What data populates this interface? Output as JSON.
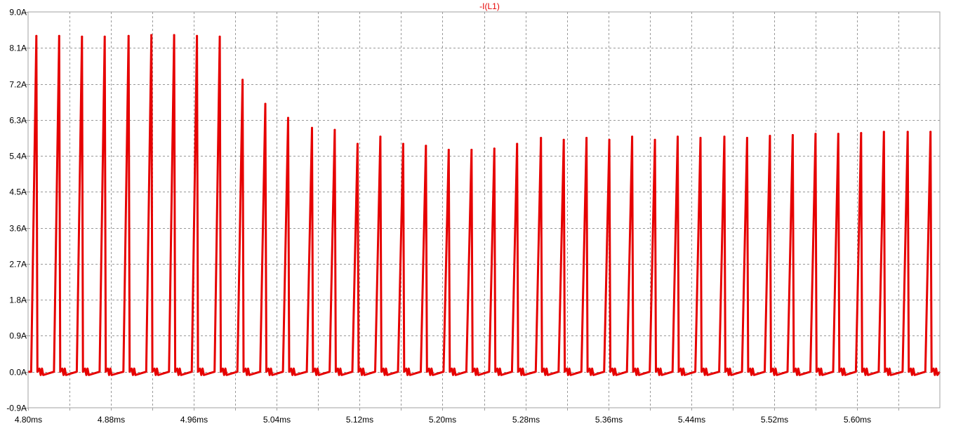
{
  "chart_data": {
    "type": "line",
    "title": "-I(L1)",
    "xlabel": "",
    "ylabel": "",
    "xlim": [
      4.8,
      5.68
    ],
    "ylim": [
      -0.9,
      9.0
    ],
    "x_unit": "ms",
    "y_unit": "A",
    "grid": true,
    "x_ticks": [
      4.8,
      4.84,
      4.88,
      4.92,
      4.96,
      5.0,
      5.04,
      5.08,
      5.12,
      5.16,
      5.2,
      5.24,
      5.28,
      5.32,
      5.36,
      5.4,
      5.44,
      5.48,
      5.52,
      5.56,
      5.6,
      5.64
    ],
    "x_tick_labels": [
      "4.80ms",
      "",
      "4.88ms",
      "",
      "4.96ms",
      "",
      "5.04ms",
      "",
      "5.12ms",
      "",
      "5.20ms",
      "",
      "5.28ms",
      "",
      "5.36ms",
      "",
      "5.44ms",
      "",
      "5.52ms",
      "",
      "5.60ms",
      ""
    ],
    "y_ticks": [
      -0.9,
      0.0,
      0.9,
      1.8,
      2.7,
      3.6,
      4.5,
      5.4,
      6.3,
      7.2,
      8.1,
      9.0
    ],
    "y_tick_labels": [
      "-0.9A",
      "0.0A",
      "0.9A",
      "1.8A",
      "2.7A",
      "3.6A",
      "4.5A",
      "5.4A",
      "6.3A",
      "7.2A",
      "8.1A",
      "9.0A"
    ],
    "series": [
      {
        "name": "-I(L1)",
        "color": "#e60000",
        "period_ms": 0.0222,
        "pulse_peak_times_ms": [
          4.808,
          4.83,
          4.852,
          4.874,
          4.897,
          4.919,
          4.941,
          4.963,
          4.985,
          5.007,
          5.029,
          5.051,
          5.074,
          5.096,
          5.118,
          5.14,
          5.162,
          5.184,
          5.206,
          5.228,
          5.25,
          5.272,
          5.295,
          5.317,
          5.339,
          5.361,
          5.383,
          5.405,
          5.427,
          5.449,
          5.472,
          5.494,
          5.516,
          5.538,
          5.56,
          5.582,
          5.604,
          5.626,
          5.649,
          5.671
        ],
        "pulse_peak_values_A": [
          8.4,
          8.4,
          8.38,
          8.38,
          8.4,
          8.42,
          8.42,
          8.4,
          8.38,
          7.3,
          6.7,
          6.35,
          6.1,
          6.05,
          5.7,
          5.88,
          5.7,
          5.65,
          5.55,
          5.55,
          5.58,
          5.7,
          5.85,
          5.8,
          5.85,
          5.8,
          5.88,
          5.8,
          5.88,
          5.85,
          5.88,
          5.85,
          5.9,
          5.92,
          5.95,
          5.95,
          5.97,
          6.0,
          6.0,
          6.0
        ],
        "baseline_A": 0.0
      }
    ]
  },
  "colors": {
    "trace": "#e60000",
    "grid": "#999999",
    "axis": "#a0a0a0",
    "background": "#ffffff"
  }
}
